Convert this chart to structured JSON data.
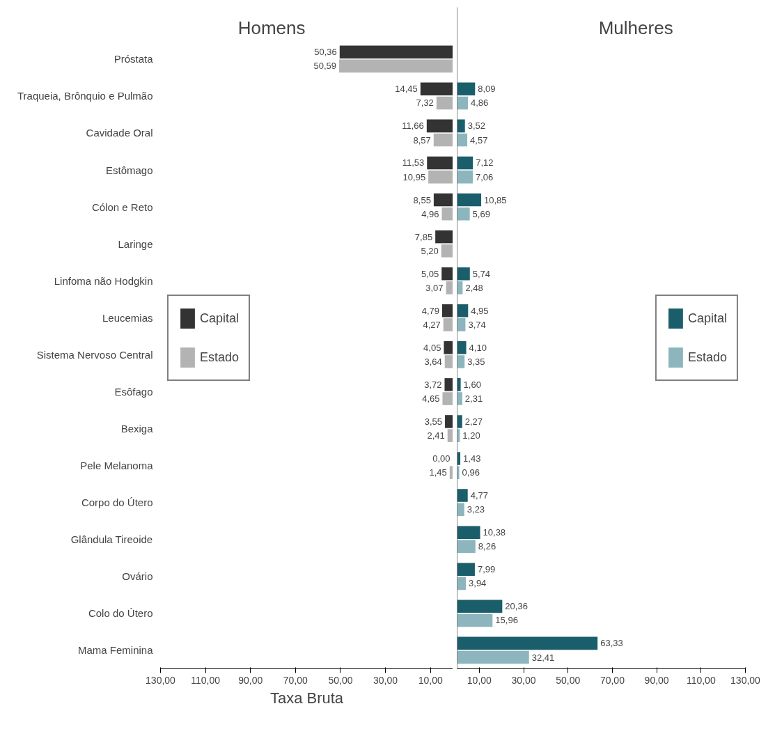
{
  "chart_data": [
    {
      "type": "bar",
      "orientation": "horizontal",
      "xlabel": "Taxa Bruta",
      "annotations": [
        "Homens"
      ],
      "categories": [
        "Próstata",
        "Traqueia, Brônquio e Pulmão",
        "Cavidade Oral",
        "Estômago",
        "Cólon e Reto",
        "Laringe",
        "Linfoma não Hodgkin",
        "Leucemias",
        "Sistema Nervoso Central",
        "Esôfago",
        "Bexiga",
        "Pele Melanoma",
        "Corpo do Útero",
        "Glândula Tireoide",
        "Ovário",
        "Colo do Útero",
        "Mama Feminina"
      ],
      "series": [
        {
          "name": "Capital",
          "color": "#333333",
          "values": [
            50.36,
            14.45,
            11.66,
            11.53,
            8.55,
            7.85,
            5.05,
            4.79,
            4.05,
            3.72,
            3.55,
            0,
            null,
            null,
            null,
            null,
            null
          ],
          "value_labels": [
            "50,36",
            "14,45",
            "11,66",
            "11,53",
            "8,55",
            "7,85",
            "5,05",
            "4,79",
            "4,05",
            "3,72",
            "3,55",
            "0,00",
            null,
            null,
            null,
            null,
            null
          ]
        },
        {
          "name": "Estado",
          "color": "#b3b3b3",
          "values": [
            50.59,
            7.32,
            8.57,
            10.95,
            4.96,
            5.2,
            3.07,
            4.27,
            3.64,
            4.65,
            2.41,
            1.45,
            null,
            null,
            null,
            null,
            null
          ],
          "value_labels": [
            "50,59",
            "7,32",
            "8,57",
            "10,95",
            "4,96",
            "5,20",
            "3,07",
            "4,27",
            "3,64",
            "4,65",
            "2,41",
            "1,45",
            null,
            null,
            null,
            null,
            null
          ]
        }
      ],
      "xlim": [
        130,
        0
      ],
      "xticks": [
        {
          "value": 130,
          "label": "130,00"
        },
        {
          "value": 110,
          "label": "110,00"
        },
        {
          "value": 90,
          "label": "90,00"
        },
        {
          "value": 70,
          "label": "70,00"
        },
        {
          "value": 50,
          "label": "50,00"
        },
        {
          "value": 30,
          "label": "30,00"
        },
        {
          "value": 10,
          "label": "10,00"
        }
      ],
      "legend": "left",
      "grid": false
    },
    {
      "type": "bar",
      "orientation": "horizontal",
      "annotations": [
        "Mulheres"
      ],
      "tick_labels": "x",
      "categories": [
        null,
        null,
        null,
        null,
        null,
        null,
        null,
        null,
        null,
        null,
        null,
        null,
        null,
        null,
        null,
        null,
        null
      ],
      "series": [
        {
          "name": "Capital",
          "color": "#1b5e6b",
          "values": [
            null,
            8.09,
            3.52,
            7.12,
            10.85,
            null,
            5.74,
            4.95,
            4.1,
            1.6,
            2.27,
            1.43,
            4.77,
            10.38,
            7.99,
            20.36,
            63.33
          ],
          "value_labels": [
            null,
            "8,09",
            "3,52",
            "7,12",
            "10,85",
            null,
            "5,74",
            "4,95",
            "4,10",
            "1,60",
            "2,27",
            "1,43",
            "4,77",
            "10,38",
            "7,99",
            "20,36",
            "63,33"
          ]
        },
        {
          "name": "Estado",
          "color": "#8db5bd",
          "values": [
            null,
            4.86,
            4.57,
            7.06,
            5.69,
            null,
            2.48,
            3.74,
            3.35,
            2.31,
            1.2,
            0.96,
            3.23,
            8.26,
            3.94,
            15.96,
            32.41
          ],
          "value_labels": [
            null,
            "4,86",
            "4,57",
            "7,06",
            "5,69",
            null,
            "2,48",
            "3,74",
            "3,35",
            "2,31",
            "1,20",
            "0,96",
            "3,23",
            "8,26",
            "3,94",
            "15,96",
            "32,41"
          ]
        }
      ],
      "xlim": [
        0,
        130
      ],
      "xticks": [
        {
          "value": 10,
          "label": "10,00"
        },
        {
          "value": 30,
          "label": "30,00"
        },
        {
          "value": 50,
          "label": "50,00"
        },
        {
          "value": 70,
          "label": "70,00"
        },
        {
          "value": 90,
          "label": "90,00"
        },
        {
          "value": 110,
          "label": "110,00"
        },
        {
          "value": 130,
          "label": "130,00"
        }
      ],
      "legend": "right",
      "grid": false
    }
  ]
}
